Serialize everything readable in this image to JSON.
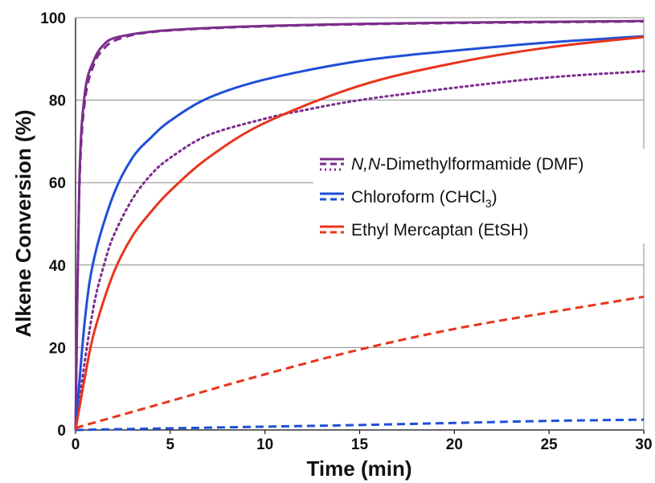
{
  "chart_data": {
    "type": "line",
    "xlabel": "Time (min)",
    "ylabel": "Alkene Conversion (%)",
    "xlim": [
      0,
      30
    ],
    "ylim": [
      0,
      100
    ],
    "x_ticks": [
      "0",
      "5",
      "10",
      "15",
      "20",
      "25",
      "30"
    ],
    "y_ticks": [
      "0",
      "20",
      "40",
      "60",
      "80",
      "100"
    ],
    "grid": "horizontal",
    "legend_placement": "center-right",
    "legend": [
      {
        "prefix": "N,N",
        "label": "-Dimethylformamide (DMF)",
        "color": "#7b2d8b"
      },
      {
        "prefix": "",
        "label": "Chloroform (CHCl",
        "sub": "3",
        "suffix": ")",
        "color": "#1f4fd8"
      },
      {
        "prefix": "",
        "label": "Ethyl Mercaptan (EtSH)",
        "color": "#e8341c"
      }
    ],
    "series": [
      {
        "legend": 0,
        "style": "solid",
        "color": "#7b2d8b",
        "x": [
          0,
          0.2,
          0.5,
          1,
          1.5,
          2,
          3,
          4,
          5,
          7,
          10,
          15,
          20,
          25,
          30
        ],
        "y": [
          0,
          60,
          82,
          90,
          93.5,
          95,
          96,
          96.6,
          97,
          97.5,
          98,
          98.5,
          98.8,
          99,
          99.2
        ]
      },
      {
        "legend": 0,
        "style": "dash",
        "color": "#7b2d8b",
        "x": [
          0,
          0.2,
          0.5,
          1,
          1.5,
          2,
          3,
          4,
          5,
          7,
          10,
          15,
          20,
          25,
          30
        ],
        "y": [
          0,
          58,
          80,
          89,
          92.5,
          94.3,
          95.8,
          96.5,
          96.9,
          97.4,
          97.9,
          98.4,
          98.7,
          98.9,
          99.1
        ]
      },
      {
        "legend": 0,
        "style": "dot",
        "color": "#7b2d8b",
        "x": [
          0,
          0.5,
          1,
          1.5,
          2,
          3,
          4,
          5,
          7,
          10,
          12,
          15,
          20,
          25,
          30
        ],
        "y": [
          0,
          17,
          31,
          40,
          47,
          56,
          62,
          66,
          71.5,
          75.5,
          77.5,
          80,
          83,
          85.5,
          87
        ]
      },
      {
        "legend": 1,
        "style": "solid",
        "color": "#1f4fd8",
        "x": [
          0,
          0.5,
          1,
          2,
          3,
          4,
          5,
          7,
          10,
          15,
          20,
          25,
          30
        ],
        "y": [
          0,
          27,
          42,
          57,
          66,
          71,
          75,
          80.5,
          85,
          89.5,
          92,
          94,
          95.5
        ]
      },
      {
        "legend": 1,
        "style": "dash",
        "color": "#1f4fd8",
        "x": [
          0,
          5,
          10,
          15,
          20,
          25,
          30
        ],
        "y": [
          0,
          0.4,
          0.8,
          1.2,
          1.7,
          2.2,
          2.5
        ]
      },
      {
        "legend": 2,
        "style": "solid",
        "color": "#e8341c",
        "x": [
          0,
          0.5,
          1,
          2,
          3,
          4,
          5,
          7,
          10,
          15,
          20,
          25,
          30
        ],
        "y": [
          0,
          13,
          24,
          38,
          47,
          53,
          58,
          66,
          74.5,
          83.5,
          89,
          92.8,
          95.3
        ]
      },
      {
        "legend": 2,
        "style": "dash",
        "color": "#e8341c",
        "x": [
          0,
          5,
          10,
          15,
          20,
          25,
          30
        ],
        "y": [
          0.5,
          7,
          13.5,
          19.5,
          24.5,
          28.5,
          32.3
        ]
      }
    ]
  }
}
